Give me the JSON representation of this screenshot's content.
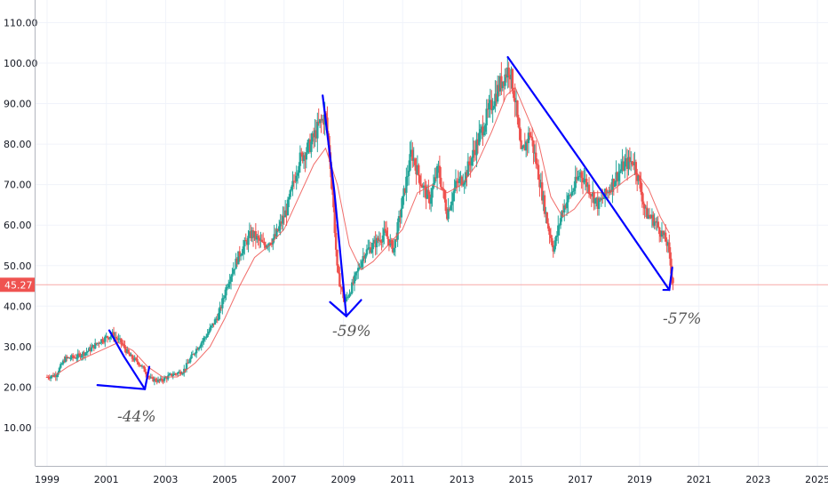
{
  "chart_data": {
    "type": "candlestick",
    "title": "",
    "xlabel": "",
    "ylabel": "",
    "x_range": [
      1999,
      2025.6
    ],
    "ylim": [
      0,
      114
    ],
    "x_ticks": [
      "1999",
      "2001",
      "2003",
      "2005",
      "2007",
      "2009",
      "2011",
      "2013",
      "2015",
      "2017",
      "2019",
      "2021",
      "2023",
      "2025"
    ],
    "y_ticks": [
      "10.00",
      "20.00",
      "30.00",
      "40.00",
      "50.00",
      "60.00",
      "70.00",
      "80.00",
      "90.00",
      "100.00",
      "110.00"
    ],
    "last_price_label": "45.27",
    "last_price": 45.27,
    "grid": true,
    "colors": {
      "up": "#26a69a",
      "down": "#ef5350",
      "ma": "#ef5350",
      "annotation": "#0000ff",
      "price_line": "#f7a9a7"
    },
    "price_path": [
      [
        1999.0,
        22.5
      ],
      [
        1999.3,
        23
      ],
      [
        1999.6,
        27
      ],
      [
        2000.0,
        27.5
      ],
      [
        2000.4,
        29
      ],
      [
        2000.8,
        31.5
      ],
      [
        2001.2,
        33
      ],
      [
        2001.5,
        31
      ],
      [
        2001.8,
        27.5
      ],
      [
        2002.1,
        26
      ],
      [
        2002.5,
        22
      ],
      [
        2002.8,
        21.5
      ],
      [
        2003.2,
        23
      ],
      [
        2003.6,
        24
      ],
      [
        2004.0,
        29
      ],
      [
        2004.4,
        33
      ],
      [
        2004.8,
        38
      ],
      [
        2005.1,
        46
      ],
      [
        2005.5,
        53
      ],
      [
        2005.9,
        58
      ],
      [
        2006.3,
        55
      ],
      [
        2006.7,
        57
      ],
      [
        2007.1,
        64
      ],
      [
        2007.5,
        76
      ],
      [
        2007.9,
        80
      ],
      [
        2008.2,
        85
      ],
      [
        2008.4,
        87
      ],
      [
        2008.6,
        72
      ],
      [
        2008.8,
        48
      ],
      [
        2009.05,
        41
      ],
      [
        2009.3,
        45
      ],
      [
        2009.7,
        53
      ],
      [
        2010.0,
        55
      ],
      [
        2010.4,
        58
      ],
      [
        2010.7,
        54
      ],
      [
        2011.0,
        66
      ],
      [
        2011.3,
        78
      ],
      [
        2011.6,
        71
      ],
      [
        2011.9,
        66
      ],
      [
        2012.2,
        74
      ],
      [
        2012.5,
        63
      ],
      [
        2012.8,
        70
      ],
      [
        2013.1,
        72
      ],
      [
        2013.5,
        80
      ],
      [
        2013.9,
        88
      ],
      [
        2014.3,
        95
      ],
      [
        2014.6,
        99
      ],
      [
        2014.8,
        91
      ],
      [
        2015.0,
        77
      ],
      [
        2015.3,
        83
      ],
      [
        2015.6,
        72
      ],
      [
        2015.9,
        60
      ],
      [
        2016.1,
        54
      ],
      [
        2016.4,
        64
      ],
      [
        2016.7,
        68
      ],
      [
        2017.0,
        73
      ],
      [
        2017.3,
        69
      ],
      [
        2017.6,
        65
      ],
      [
        2017.9,
        68
      ],
      [
        2018.2,
        72
      ],
      [
        2018.5,
        75
      ],
      [
        2018.8,
        76
      ],
      [
        2019.0,
        70
      ],
      [
        2019.2,
        63
      ],
      [
        2019.5,
        61
      ],
      [
        2019.75,
        58
      ],
      [
        2019.95,
        55
      ],
      [
        2020.1,
        47
      ],
      [
        2020.15,
        45.27
      ]
    ],
    "ma_path": [
      [
        1999.2,
        22.5
      ],
      [
        1999.7,
        25
      ],
      [
        2000.2,
        27
      ],
      [
        2000.8,
        29
      ],
      [
        2001.4,
        31
      ],
      [
        2001.9,
        29
      ],
      [
        2002.4,
        25
      ],
      [
        2002.9,
        22.5
      ],
      [
        2003.4,
        22.5
      ],
      [
        2004.0,
        26
      ],
      [
        2004.5,
        30
      ],
      [
        2005.0,
        37
      ],
      [
        2005.5,
        45
      ],
      [
        2006.0,
        52
      ],
      [
        2006.5,
        55
      ],
      [
        2007.0,
        59
      ],
      [
        2007.5,
        67
      ],
      [
        2008.0,
        75
      ],
      [
        2008.4,
        79
      ],
      [
        2008.8,
        70
      ],
      [
        2009.2,
        55
      ],
      [
        2009.6,
        49
      ],
      [
        2010.0,
        51
      ],
      [
        2010.5,
        55
      ],
      [
        2011.0,
        59
      ],
      [
        2011.5,
        68
      ],
      [
        2012.0,
        70
      ],
      [
        2012.5,
        68
      ],
      [
        2013.0,
        70
      ],
      [
        2013.5,
        75
      ],
      [
        2014.0,
        83
      ],
      [
        2014.5,
        92
      ],
      [
        2014.8,
        94
      ],
      [
        2015.2,
        87
      ],
      [
        2015.6,
        80
      ],
      [
        2016.0,
        67
      ],
      [
        2016.4,
        62
      ],
      [
        2016.8,
        64
      ],
      [
        2017.2,
        68
      ],
      [
        2017.6,
        68
      ],
      [
        2018.0,
        68
      ],
      [
        2018.5,
        71
      ],
      [
        2018.9,
        73
      ],
      [
        2019.3,
        69
      ],
      [
        2019.7,
        62
      ],
      [
        2020.0,
        58
      ]
    ],
    "annotations": [
      {
        "kind": "arrow",
        "points": [
          [
            2001.1,
            34
          ],
          [
            2001.6,
            27.5
          ],
          [
            2002.3,
            19.5
          ]
        ],
        "head_left": [
          2000.7,
          20.5
        ],
        "head_right": [
          2002.45,
          25
        ]
      },
      {
        "kind": "arrow",
        "points": [
          [
            2008.3,
            92
          ],
          [
            2008.7,
            68
          ],
          [
            2009.1,
            37.5
          ]
        ],
        "head_left": [
          2008.55,
          41
        ],
        "head_right": [
          2009.6,
          41.5
        ]
      },
      {
        "kind": "arrow",
        "points": [
          [
            2014.55,
            101.5
          ],
          [
            2017.0,
            76
          ],
          [
            2020.0,
            44
          ]
        ],
        "head_left": [
          2019.8,
          44
        ],
        "head_right": [
          2020.1,
          49.5
        ]
      }
    ],
    "annotation_labels": [
      "-44%",
      "-59%",
      "-57%"
    ]
  }
}
